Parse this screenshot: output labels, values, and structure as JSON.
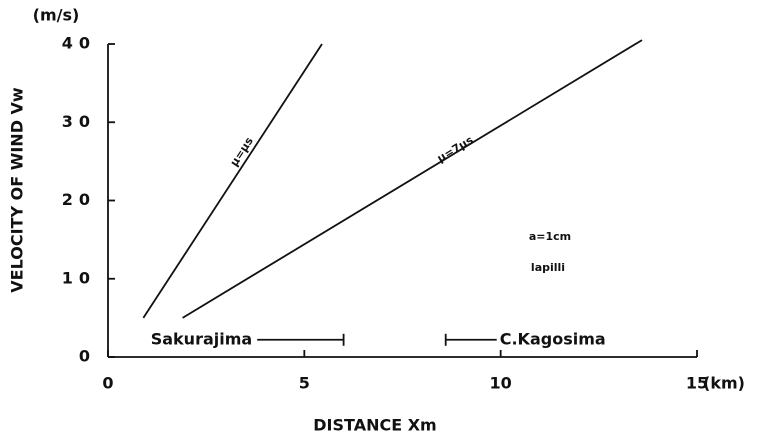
{
  "chart_data": {
    "type": "line",
    "xlabel": "DISTANCE    Xm",
    "xunit": "(km)",
    "ylabel": "VELOCITY  OF  WIND    Vw",
    "yunit": "(m/s)",
    "xlim": [
      0,
      15
    ],
    "xticks": [
      0,
      5,
      10,
      15
    ],
    "ylim": [
      0,
      40
    ],
    "yticks": [
      0,
      10,
      20,
      30,
      40
    ],
    "color": "#111111",
    "series": [
      {
        "name": "μ=μs",
        "x": [
          0.9,
          5.45
        ],
        "values": [
          5,
          40
        ]
      },
      {
        "name": "μ=7μs",
        "x": [
          1.9,
          13.6
        ],
        "values": [
          5,
          40.5
        ]
      }
    ],
    "ranges": [
      {
        "label": "Sakurajima",
        "x": [
          3.8,
          6.0
        ],
        "y": 2.2
      },
      {
        "label": "C.Kagosima",
        "x": [
          8.6,
          9.9
        ],
        "y": 2.2
      }
    ],
    "annotations": [
      "a=1cm",
      "lapilli"
    ]
  }
}
